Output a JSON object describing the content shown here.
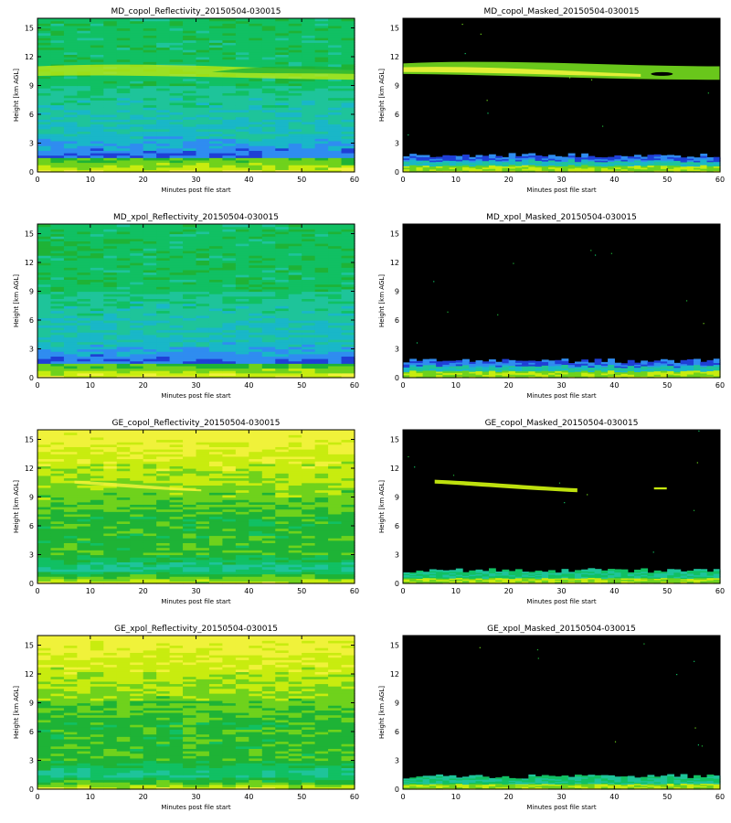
{
  "chart_data": [
    {
      "type": "heatmap",
      "title": "MD_copol_Reflectivity_20150504-030015",
      "xlabel": "Minutes post file start",
      "ylabel": "Height [km AGL]",
      "xlim": [
        0,
        60
      ],
      "ylim": [
        0,
        16
      ],
      "xticks": [
        "0",
        "10",
        "20",
        "30",
        "40",
        "50",
        "60"
      ],
      "yticks": [
        "0",
        "3",
        "6",
        "9",
        "12",
        "15"
      ],
      "variant": "md_raw",
      "masked": false
    },
    {
      "type": "heatmap",
      "title": "MD_copol_Masked_20150504-030015",
      "xlabel": "Minutes post file start",
      "ylabel": "Height [km AGL]",
      "xlim": [
        0,
        60
      ],
      "ylim": [
        0,
        16
      ],
      "xticks": [
        "0",
        "10",
        "20",
        "30",
        "40",
        "50",
        "60"
      ],
      "yticks": [
        "0",
        "3",
        "6",
        "9",
        "12",
        "15"
      ],
      "variant": "md_mask_cloud",
      "masked": true
    },
    {
      "type": "heatmap",
      "title": "MD_xpol_Reflectivity_20150504-030015",
      "xlabel": "Minutes post file start",
      "ylabel": "Height [km AGL]",
      "xlim": [
        0,
        60
      ],
      "ylim": [
        0,
        16
      ],
      "xticks": [
        "0",
        "10",
        "20",
        "30",
        "40",
        "50",
        "60"
      ],
      "yticks": [
        "0",
        "3",
        "6",
        "9",
        "12",
        "15"
      ],
      "variant": "md_raw_xpol",
      "masked": false
    },
    {
      "type": "heatmap",
      "title": "MD_xpol_Masked_20150504-030015",
      "xlabel": "Minutes post file start",
      "ylabel": "Height [km AGL]",
      "xlim": [
        0,
        60
      ],
      "ylim": [
        0,
        16
      ],
      "xticks": [
        "0",
        "10",
        "20",
        "30",
        "40",
        "50",
        "60"
      ],
      "yticks": [
        "0",
        "3",
        "6",
        "9",
        "12",
        "15"
      ],
      "variant": "md_mask_low",
      "masked": true
    },
    {
      "type": "heatmap",
      "title": "GE_copol_Reflectivity_20150504-030015",
      "xlabel": "Minutes post file start",
      "ylabel": "Height [km AGL]",
      "xlim": [
        0,
        60
      ],
      "ylim": [
        0,
        16
      ],
      "xticks": [
        "0",
        "10",
        "20",
        "30",
        "40",
        "50",
        "60"
      ],
      "yticks": [
        "0",
        "3",
        "6",
        "9",
        "12",
        "15"
      ],
      "variant": "ge_raw",
      "masked": false
    },
    {
      "type": "heatmap",
      "title": "GE_copol_Masked_20150504-030015",
      "xlabel": "Minutes post file start",
      "ylabel": "Height [km AGL]",
      "xlim": [
        0,
        60
      ],
      "ylim": [
        0,
        16
      ],
      "xticks": [
        "0",
        "10",
        "20",
        "30",
        "40",
        "50",
        "60"
      ],
      "yticks": [
        "0",
        "3",
        "6",
        "9",
        "12",
        "15"
      ],
      "variant": "ge_mask_cloud",
      "masked": true
    },
    {
      "type": "heatmap",
      "title": "GE_xpol_Reflectivity_20150504-030015",
      "xlabel": "Minutes post file start",
      "ylabel": "Height [km AGL]",
      "xlim": [
        0,
        60
      ],
      "ylim": [
        0,
        16
      ],
      "xticks": [
        "0",
        "10",
        "20",
        "30",
        "40",
        "50",
        "60"
      ],
      "yticks": [
        "0",
        "3",
        "6",
        "9",
        "12",
        "15"
      ],
      "variant": "ge_raw_xpol",
      "masked": false
    },
    {
      "type": "heatmap",
      "title": "GE_xpol_Masked_20150504-030015",
      "xlabel": "Minutes post file start",
      "ylabel": "Height [km AGL]",
      "xlim": [
        0,
        60
      ],
      "ylim": [
        0,
        16
      ],
      "xticks": [
        "0",
        "10",
        "20",
        "30",
        "40",
        "50",
        "60"
      ],
      "yticks": [
        "0",
        "3",
        "6",
        "9",
        "12",
        "15"
      ],
      "variant": "ge_mask_low",
      "masked": true
    }
  ],
  "colors": {
    "masked_background": "#000000",
    "palette": [
      "#1f3fd6",
      "#2f8cf0",
      "#19b7c8",
      "#1ec49a",
      "#11c063",
      "#1eb336",
      "#6fd21c",
      "#c8ec0f",
      "#f0f23a"
    ]
  }
}
